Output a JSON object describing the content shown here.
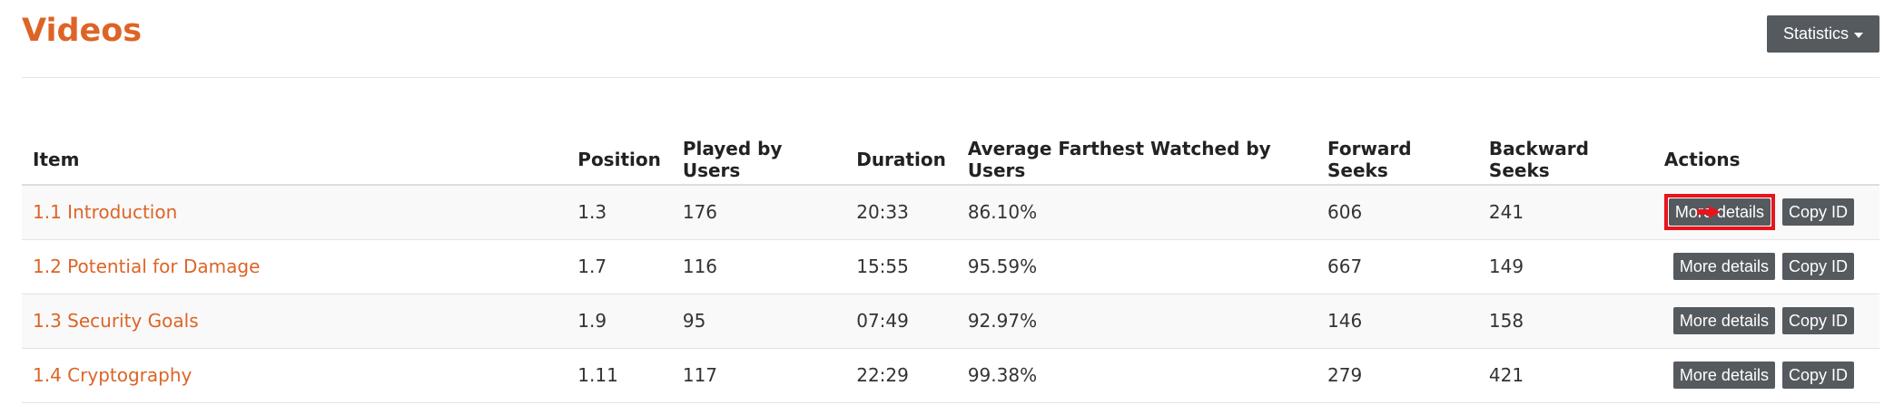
{
  "header": {
    "title": "Videos",
    "statistics_label": "Statistics"
  },
  "table": {
    "columns": [
      "Item",
      "Position",
      "Played by Users",
      "Duration",
      "Average Farthest Watched by Users",
      "Forward Seeks",
      "Backward Seeks",
      "Actions"
    ],
    "rows": [
      {
        "item": "1.1 Introduction",
        "position": "1.3",
        "played": "176",
        "duration": "20:33",
        "avg": "86.10%",
        "forward": "606",
        "backward": "241"
      },
      {
        "item": "1.2 Potential for Damage",
        "position": "1.7",
        "played": "116",
        "duration": "15:55",
        "avg": "95.59%",
        "forward": "667",
        "backward": "149"
      },
      {
        "item": "1.3 Security Goals",
        "position": "1.9",
        "played": "95",
        "duration": "07:49",
        "avg": "92.97%",
        "forward": "146",
        "backward": "158"
      },
      {
        "item": "1.4 Cryptography",
        "position": "1.11",
        "played": "117",
        "duration": "22:29",
        "avg": "99.38%",
        "forward": "279",
        "backward": "421"
      }
    ],
    "more_details_label": "More details",
    "copy_id_label": "Copy ID"
  },
  "colors": {
    "accent": "#dd6426",
    "button": "#555a5f",
    "highlight": "#e8141c"
  }
}
